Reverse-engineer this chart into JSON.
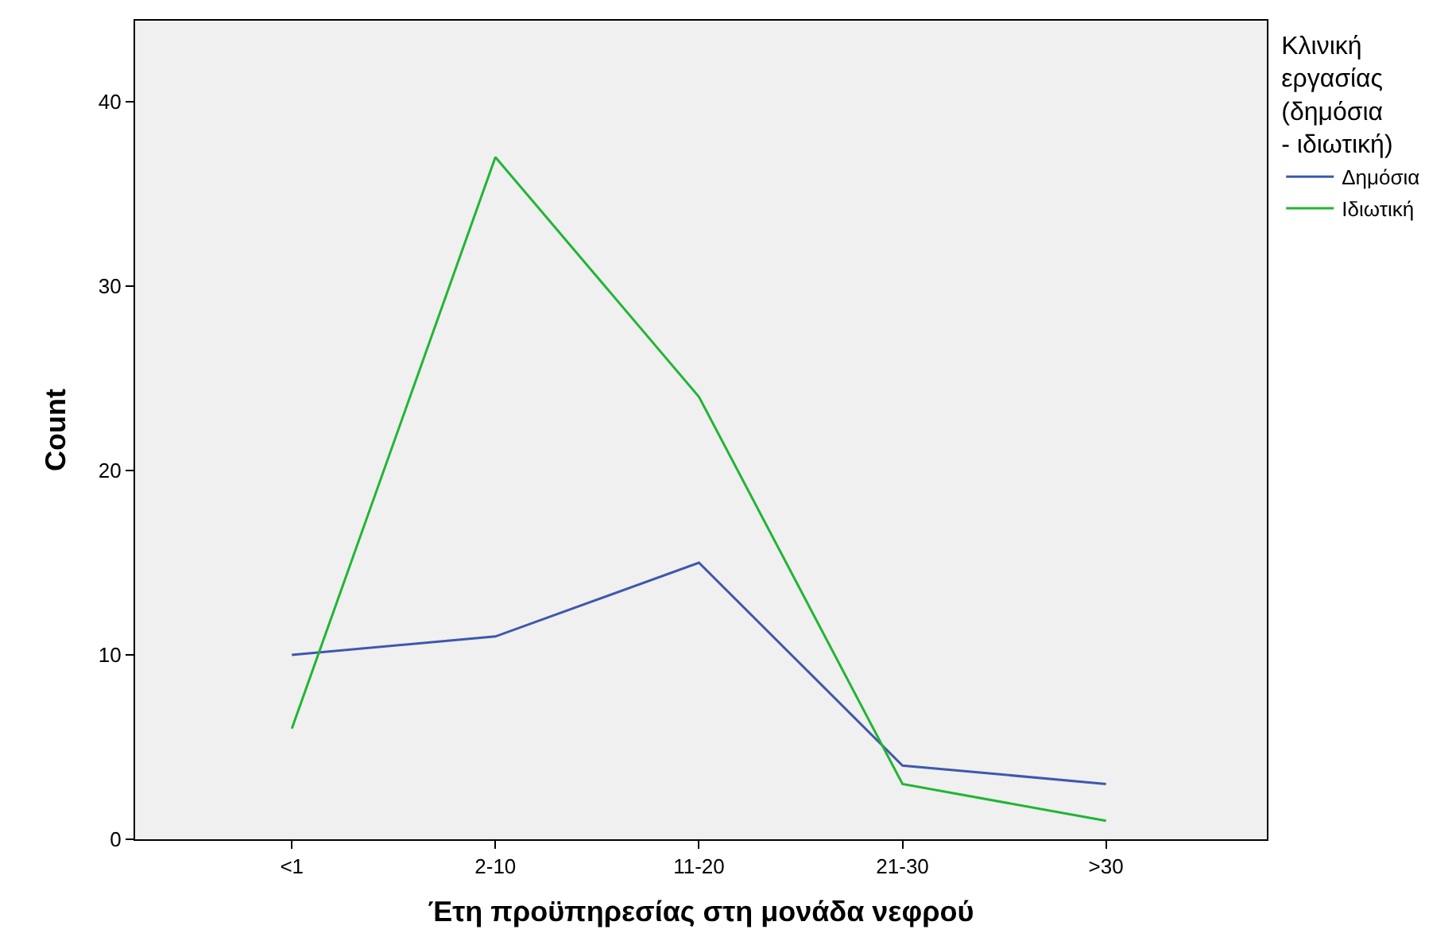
{
  "chart_data": {
    "type": "line",
    "xlabel": "Έτη προϋπηρεσίας στη μονάδα νεφρού",
    "ylabel": "Count",
    "legend_title": "Κλινική εργασίας (δημόσια - ιδιωτική)",
    "categories": [
      "<1",
      "2-10",
      "11-20",
      "21-30",
      ">30"
    ],
    "series": [
      {
        "name": "Δημόσια",
        "color": "#3e58ac",
        "values": [
          10,
          11,
          15,
          4,
          3
        ]
      },
      {
        "name": "Ιδιωτική",
        "color": "#21b534",
        "values": [
          6,
          37,
          24,
          3,
          1
        ]
      }
    ],
    "ylim": [
      0,
      44.4
    ],
    "yticks": [
      0,
      10,
      20,
      30,
      40
    ],
    "grid": false,
    "legend": "right",
    "marker": "none",
    "line_style": "solid"
  }
}
